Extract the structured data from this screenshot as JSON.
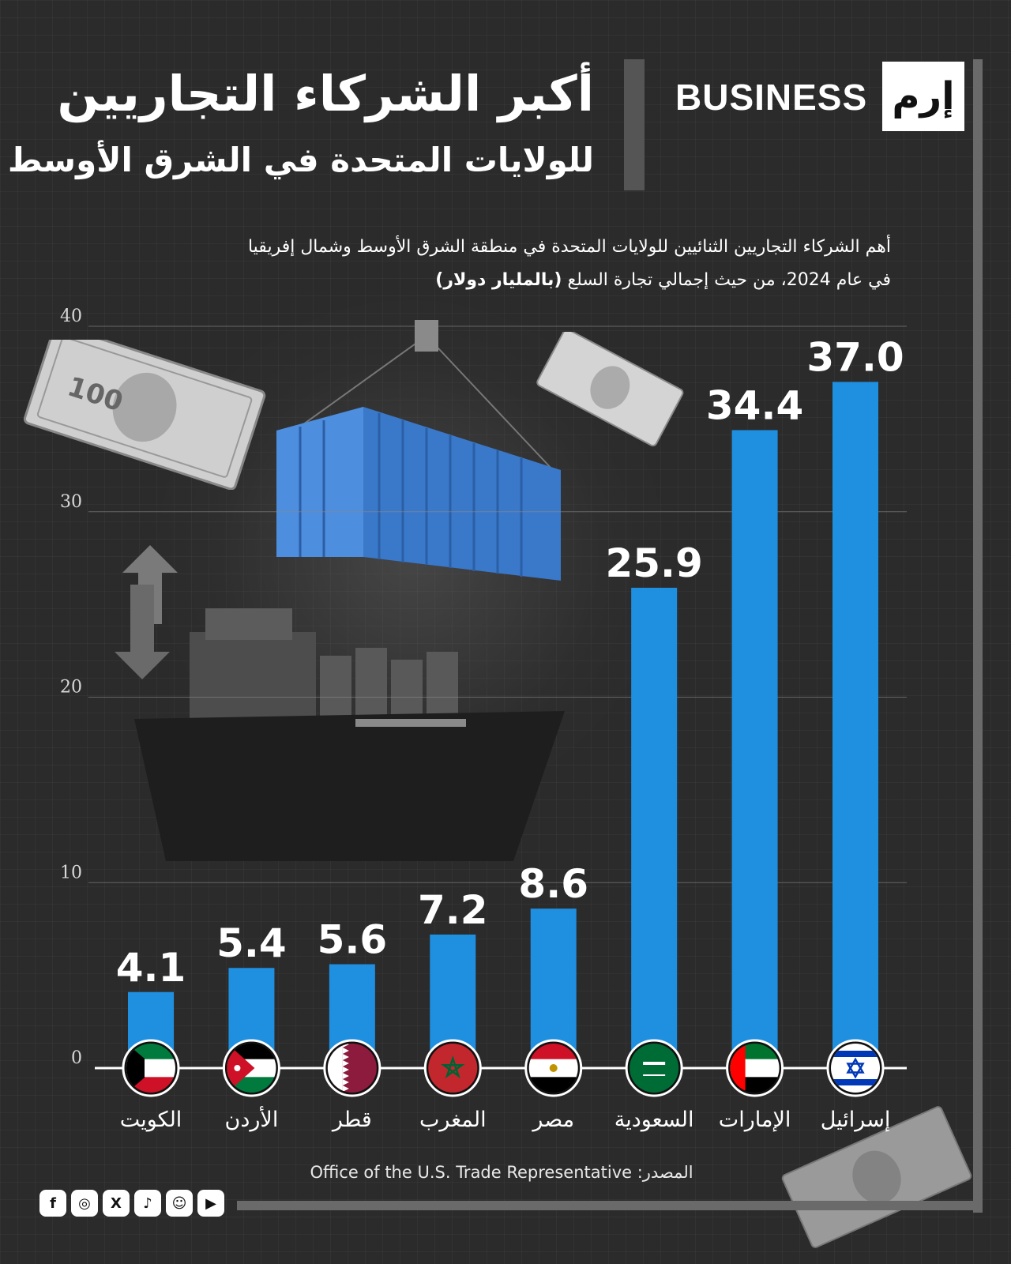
{
  "brand": {
    "name": "BUSINESS",
    "mark": "إرم"
  },
  "title": "أكبر الشركاء التجاريين",
  "subtitle": "للولايات المتحدة في الشرق الأوسط",
  "description": {
    "line1": "أهم الشركاء التجاريين الثنائيين للولايات المتحدة في منطقة الشرق الأوسط وشمال إفريقيا",
    "line2_prefix": "في عام 2024، من حيث إجمالي تجارة السلع ",
    "line2_bold": "(بالمليار دولار)"
  },
  "chart_data": {
    "type": "bar",
    "title": "أكبر الشركاء التجاريين للولايات المتحدة في الشرق الأوسط",
    "ylabel": "مليار دولار",
    "ylim": [
      0,
      40
    ],
    "yticks": [
      0,
      10,
      20,
      30,
      40
    ],
    "grid": true,
    "categories": [
      "الكويت",
      "الأردن",
      "قطر",
      "المغرب",
      "مصر",
      "السعودية",
      "الإمارات",
      "إسرائيل"
    ],
    "values": [
      4.1,
      5.4,
      5.6,
      7.2,
      8.6,
      25.9,
      34.4,
      37.0
    ],
    "value_labels": [
      "4.1",
      "5.4",
      "5.6",
      "7.2",
      "8.6",
      "25.9",
      "34.4",
      "37.0"
    ],
    "bar_color": "#1f8fe0"
  },
  "flags": [
    "kuwait-flag",
    "jordan-flag",
    "qatar-flag",
    "morocco-flag",
    "egypt-flag",
    "saudi-flag",
    "uae-flag",
    "israel-flag"
  ],
  "source": "المصدر: Office of the U.S. Trade Representative",
  "socials": [
    "facebook-icon",
    "instagram-icon",
    "x-icon",
    "tiktok-icon",
    "snapchat-icon",
    "youtube-icon"
  ],
  "colors": {
    "background": "#2b2b2b",
    "bar": "#1f8fe0",
    "frame": "#6a6a6a"
  }
}
